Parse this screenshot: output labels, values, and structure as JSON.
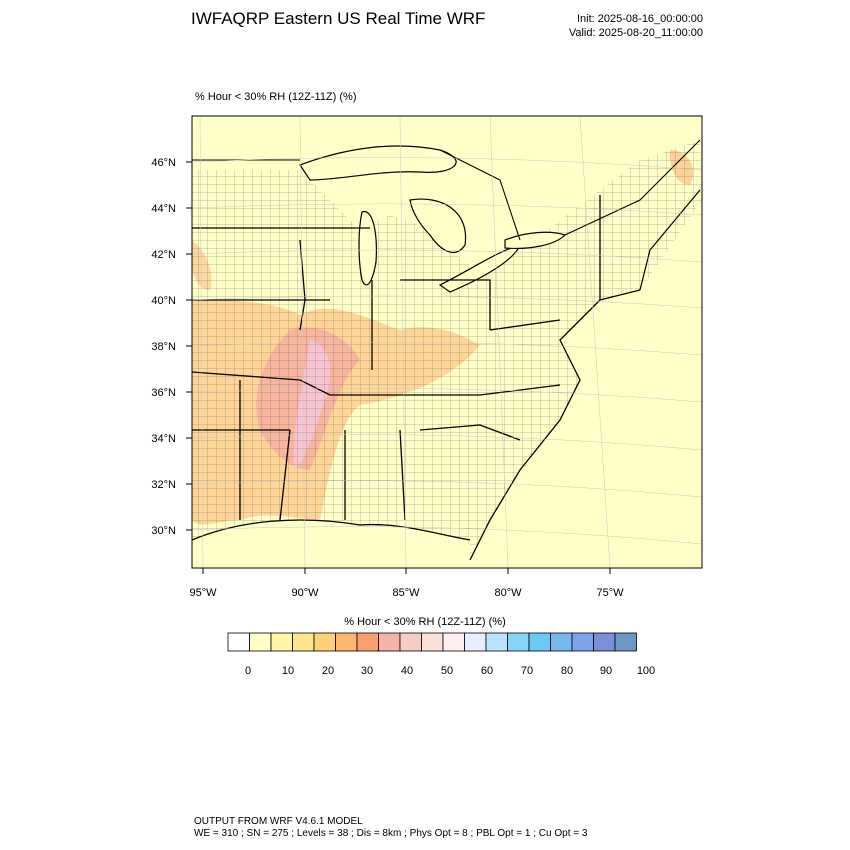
{
  "header": {
    "title": "IWFAQRP Eastern US Real Time WRF",
    "init": "Init: 2025-08-16_00:00:00",
    "valid": "Valid: 2025-08-20_11:00:00"
  },
  "map": {
    "field_label": "% Hour < 30% RH (12Z-11Z)   (%)",
    "lat_labels": [
      "46°N",
      "44°N",
      "42°N",
      "40°N",
      "38°N",
      "36°N",
      "34°N",
      "32°N",
      "30°N"
    ],
    "lon_labels": [
      "95°W",
      "90°W",
      "85°W",
      "80°W",
      "75°W"
    ],
    "background_color": "#ffffc8"
  },
  "colorbar": {
    "title": "% Hour < 30% RH (12Z-11Z)  (%)",
    "tick_labels": [
      "0",
      "10",
      "20",
      "30",
      "40",
      "50",
      "60",
      "70",
      "80",
      "90",
      "100"
    ],
    "colors": [
      "#ffffff",
      "#ffffc6",
      "#fff4a8",
      "#ffe48c",
      "#ffd07c",
      "#ffb470",
      "#f8a070",
      "#f4b4a8",
      "#f8ccc0",
      "#fce0d8",
      "#ffeef0",
      "#e8eeff",
      "#b8e4ff",
      "#88d4f8",
      "#6cc8f4",
      "#78b8f0",
      "#7ca4ec",
      "#7890d8",
      "#6c98c8"
    ]
  },
  "footer": {
    "line1": "OUTPUT FROM WRF V4.6.1 MODEL",
    "line2": "WE = 310 ; SN = 275 ; Levels = 38 ; Dis = 8km ; Phys Opt = 8 ; PBL Opt = 1 ; Cu Opt = 3"
  }
}
